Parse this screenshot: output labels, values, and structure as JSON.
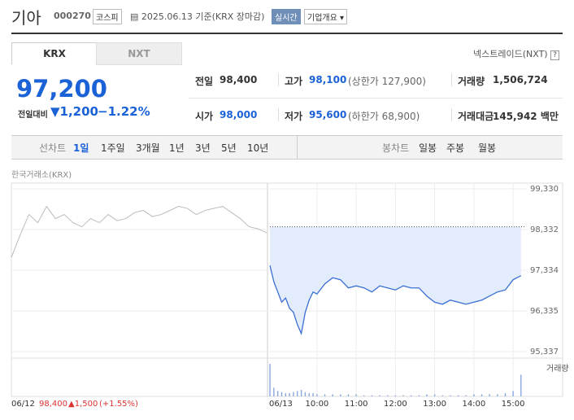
{
  "header": {
    "title": "기아",
    "code": "000270",
    "market": "코스피",
    "date": "2025.06.13 기준(KRX 장마감)",
    "realtime": "실시간",
    "company": "기업개요"
  },
  "tabs": {
    "krx": "KRX",
    "nxt": "NXT",
    "nextrade": "넥스트레이드(NXT)",
    "help": "?"
  },
  "price": {
    "current": "97,200",
    "change_label": "전일대비",
    "change": "1,200",
    "change_rate": "−1.22%"
  },
  "quote": [
    [
      "전일",
      "98,400",
      ""
    ],
    [
      "고가",
      "98,100",
      "(상한가 127,900)"
    ],
    [
      "거래량",
      "1,506,724",
      ""
    ],
    [
      "시가",
      "98,000",
      ""
    ],
    [
      "저가",
      "95,600",
      "(하한가 68,900)"
    ],
    [
      "거래대금",
      "145,942 백만",
      ""
    ]
  ],
  "toolbar": {
    "line_label": "선차트",
    "line_tabs": [
      "1일",
      "1주일",
      "3개월",
      "1년",
      "3년",
      "5년",
      "10년"
    ],
    "candle_label": "봉차트",
    "candle_tabs": [
      "일봉",
      "주봉",
      "월봉"
    ]
  },
  "chart_data": {
    "type": "line",
    "source": "한국거래소(KRX)",
    "volume_label": "거래량",
    "day_labels": [
      "06/12",
      "06/13"
    ],
    "prev_summary": {
      "price": "98,400",
      "change": "▲1,500",
      "rate": "(+1.55%)"
    },
    "xlim": [
      8.8,
      15.35
    ],
    "xticks": [
      {
        "value": 10,
        "label": "10:00"
      },
      {
        "value": 11,
        "label": "11:00"
      },
      {
        "value": 12,
        "label": "12:00"
      },
      {
        "value": 13,
        "label": "13:00"
      },
      {
        "value": 14,
        "label": "14:00"
      },
      {
        "value": 15,
        "label": "15:00"
      }
    ],
    "ylim": [
      95337,
      99330
    ],
    "yticks": [
      {
        "value": 99330,
        "label": "99,330"
      },
      {
        "value": 98332,
        "label": "98,332"
      },
      {
        "value": 97334,
        "label": "97,334"
      },
      {
        "value": 96335,
        "label": "96,335"
      },
      {
        "value": 95337,
        "label": "95,337"
      }
    ],
    "baseline": 98400,
    "prev_series": {
      "color": "#bbbbbb",
      "values": [
        97650,
        98200,
        98700,
        98500,
        98900,
        98600,
        98700,
        98500,
        98400,
        98600,
        98500,
        98700,
        98550,
        98600,
        98750,
        98800,
        98650,
        98700,
        98800,
        98900,
        98850,
        98700,
        98800,
        98850,
        98900,
        98750,
        98600,
        98400,
        98350,
        98250
      ]
    },
    "series": [
      {
        "color": "#3b6fd4",
        "fill": "#e3ecfa",
        "x": [
          8.8,
          8.9,
          9.0,
          9.1,
          9.2,
          9.3,
          9.4,
          9.5,
          9.6,
          9.7,
          9.8,
          9.9,
          10.0,
          10.2,
          10.4,
          10.6,
          10.8,
          11.0,
          11.2,
          11.4,
          11.6,
          11.8,
          12.0,
          12.2,
          12.4,
          12.6,
          12.8,
          13.0,
          13.2,
          13.4,
          13.6,
          13.8,
          14.0,
          14.2,
          14.4,
          14.6,
          14.8,
          15.0,
          15.2
        ],
        "values": [
          97450,
          97050,
          96800,
          96550,
          96650,
          96400,
          96300,
          96000,
          95780,
          96300,
          96600,
          96800,
          96750,
          97000,
          97150,
          97100,
          96900,
          96950,
          96900,
          96800,
          96950,
          96900,
          96850,
          96950,
          96900,
          96900,
          96700,
          96550,
          96500,
          96600,
          96550,
          96500,
          96550,
          96600,
          96700,
          96800,
          96850,
          97100,
          97200
        ],
        "volume": [
          30,
          8,
          5,
          4,
          3,
          3,
          4,
          5,
          6,
          4,
          3,
          3,
          2,
          2,
          2,
          2,
          2,
          2,
          1,
          1,
          1,
          1,
          1,
          1,
          1,
          1,
          2,
          2,
          1,
          1,
          1,
          1,
          2,
          2,
          2,
          2,
          3,
          5,
          20
        ]
      }
    ]
  }
}
